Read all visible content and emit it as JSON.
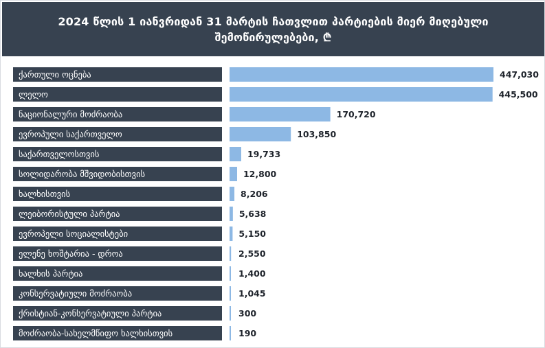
{
  "title": "2024 წლის 1 იანვრიდან 31 მარტის ჩათვლით პარტიების მიერ მიღებული შემოწირულებები, ₾",
  "chart_data": {
    "type": "bar",
    "orientation": "horizontal",
    "title": "2024 წლის 1 იანვრიდან 31 მარტის ჩათვლით პარტიების მიერ მიღებული შემოწირულებები, ₾",
    "categories": [
      "ქართული ოცნება",
      "ლელო",
      "ნაციონალური მოძრაობა",
      "ევროპული საქართველო",
      "საქართველოსთვის",
      "სოლიდარობა მშვიდობისთვის",
      "ხალხისთვის",
      "ლეიბორისტული პარტია",
      "ევროპელი სოციალისტები",
      "ელენე ხოშტარია - დროა",
      "ხალხის პარტია",
      "კონსერვატიული მოძრაობა",
      "ქრისტიან-კონსერვატიული პარტია",
      "მოძრაობა-სახელმწიფო ხალხისთვის"
    ],
    "values": [
      447030,
      445500,
      170720,
      103850,
      19733,
      12800,
      8206,
      5638,
      5150,
      2550,
      1400,
      1045,
      300,
      190
    ],
    "value_labels": [
      "447,030",
      "445,500",
      "170,720",
      "103,850",
      "19,733",
      "12,800",
      "8,206",
      "5,638",
      "5,150",
      "2,550",
      "1,400",
      "1,045",
      "300",
      "190"
    ],
    "xlim": [
      0,
      447030
    ],
    "grid": false,
    "colors": {
      "bar": "#8db8e4",
      "label_box": "#374250",
      "header": "#374250",
      "value_text": "#1e232b"
    }
  }
}
